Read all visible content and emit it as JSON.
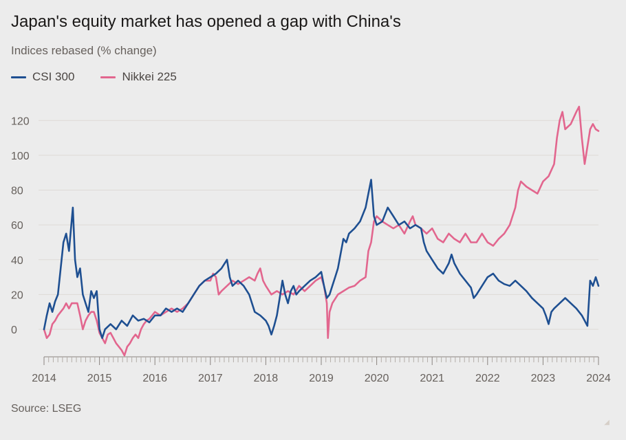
{
  "header": {
    "title": "Japan's equity market has opened a gap with China's",
    "subtitle": "Indices rebased (% change)"
  },
  "footer": {
    "source": "Source: LSEG"
  },
  "colors": {
    "csi": "#1e4f91",
    "nikkei": "#e2668e",
    "grid": "#dedad6",
    "axis": "#8a8480"
  },
  "chart_data": {
    "type": "line",
    "title": "Japan's equity market has opened a gap with China's",
    "subtitle": "Indices rebased (% change)",
    "xlabel": "",
    "ylabel": "",
    "xlim": [
      2014,
      2024
    ],
    "ylim": [
      -15,
      130
    ],
    "y_ticks": [
      0,
      20,
      40,
      60,
      80,
      100,
      120
    ],
    "x_ticks": [
      2014,
      2015,
      2016,
      2017,
      2018,
      2019,
      2020,
      2021,
      2022,
      2023,
      2024
    ],
    "x_tick_labels": [
      "2014",
      "2015",
      "2016",
      "2017",
      "2018",
      "2019",
      "2020",
      "2021",
      "2022",
      "2023",
      "2024"
    ],
    "grid": true,
    "legend": "top-left",
    "series": [
      {
        "name": "CSI 300",
        "color": "#1e4f91",
        "points": [
          [
            2014.0,
            0
          ],
          [
            2014.05,
            8
          ],
          [
            2014.1,
            15
          ],
          [
            2014.15,
            10
          ],
          [
            2014.2,
            16
          ],
          [
            2014.25,
            20
          ],
          [
            2014.3,
            35
          ],
          [
            2014.35,
            50
          ],
          [
            2014.4,
            55
          ],
          [
            2014.45,
            45
          ],
          [
            2014.52,
            70
          ],
          [
            2014.56,
            40
          ],
          [
            2014.6,
            30
          ],
          [
            2014.65,
            35
          ],
          [
            2014.7,
            20
          ],
          [
            2014.75,
            15
          ],
          [
            2014.8,
            10
          ],
          [
            2014.85,
            22
          ],
          [
            2014.9,
            18
          ],
          [
            2014.95,
            22
          ],
          [
            2015.0,
            0
          ],
          [
            2015.05,
            -5
          ],
          [
            2015.1,
            0
          ],
          [
            2015.2,
            3
          ],
          [
            2015.3,
            0
          ],
          [
            2015.4,
            5
          ],
          [
            2015.5,
            2
          ],
          [
            2015.6,
            8
          ],
          [
            2015.7,
            5
          ],
          [
            2015.8,
            6
          ],
          [
            2015.9,
            4
          ],
          [
            2016.0,
            8
          ],
          [
            2016.1,
            8
          ],
          [
            2016.2,
            12
          ],
          [
            2016.3,
            10
          ],
          [
            2016.4,
            12
          ],
          [
            2016.5,
            10
          ],
          [
            2016.6,
            15
          ],
          [
            2016.7,
            20
          ],
          [
            2016.8,
            25
          ],
          [
            2016.9,
            28
          ],
          [
            2017.0,
            30
          ],
          [
            2017.1,
            32
          ],
          [
            2017.2,
            35
          ],
          [
            2017.3,
            40
          ],
          [
            2017.35,
            30
          ],
          [
            2017.4,
            25
          ],
          [
            2017.5,
            28
          ],
          [
            2017.6,
            25
          ],
          [
            2017.7,
            20
          ],
          [
            2017.8,
            10
          ],
          [
            2017.9,
            8
          ],
          [
            2018.0,
            5
          ],
          [
            2018.05,
            2
          ],
          [
            2018.1,
            -3
          ],
          [
            2018.15,
            2
          ],
          [
            2018.2,
            8
          ],
          [
            2018.25,
            18
          ],
          [
            2018.3,
            28
          ],
          [
            2018.35,
            20
          ],
          [
            2018.4,
            15
          ],
          [
            2018.45,
            22
          ],
          [
            2018.5,
            25
          ],
          [
            2018.55,
            20
          ],
          [
            2018.6,
            22
          ],
          [
            2018.7,
            25
          ],
          [
            2018.8,
            28
          ],
          [
            2018.9,
            30
          ],
          [
            2019.0,
            33
          ],
          [
            2019.05,
            25
          ],
          [
            2019.1,
            18
          ],
          [
            2019.15,
            20
          ],
          [
            2019.2,
            25
          ],
          [
            2019.25,
            30
          ],
          [
            2019.3,
            35
          ],
          [
            2019.4,
            52
          ],
          [
            2019.45,
            50
          ],
          [
            2019.5,
            55
          ],
          [
            2019.6,
            58
          ],
          [
            2019.7,
            62
          ],
          [
            2019.8,
            70
          ],
          [
            2019.85,
            78
          ],
          [
            2019.9,
            86
          ],
          [
            2019.95,
            65
          ],
          [
            2020.0,
            60
          ],
          [
            2020.1,
            62
          ],
          [
            2020.2,
            70
          ],
          [
            2020.3,
            65
          ],
          [
            2020.4,
            60
          ],
          [
            2020.5,
            62
          ],
          [
            2020.6,
            58
          ],
          [
            2020.7,
            60
          ],
          [
            2020.8,
            58
          ],
          [
            2020.85,
            50
          ],
          [
            2020.9,
            45
          ],
          [
            2021.0,
            40
          ],
          [
            2021.1,
            35
          ],
          [
            2021.2,
            32
          ],
          [
            2021.3,
            38
          ],
          [
            2021.35,
            43
          ],
          [
            2021.4,
            38
          ],
          [
            2021.5,
            32
          ],
          [
            2021.6,
            28
          ],
          [
            2021.7,
            24
          ],
          [
            2021.75,
            18
          ],
          [
            2021.8,
            20
          ],
          [
            2021.9,
            25
          ],
          [
            2022.0,
            30
          ],
          [
            2022.1,
            32
          ],
          [
            2022.2,
            28
          ],
          [
            2022.3,
            26
          ],
          [
            2022.4,
            25
          ],
          [
            2022.5,
            28
          ],
          [
            2022.6,
            25
          ],
          [
            2022.7,
            22
          ],
          [
            2022.8,
            18
          ],
          [
            2022.9,
            15
          ],
          [
            2023.0,
            12
          ],
          [
            2023.05,
            8
          ],
          [
            2023.1,
            3
          ],
          [
            2023.15,
            10
          ],
          [
            2023.2,
            12
          ],
          [
            2023.3,
            15
          ],
          [
            2023.4,
            18
          ],
          [
            2023.5,
            15
          ],
          [
            2023.6,
            12
          ],
          [
            2023.7,
            8
          ],
          [
            2023.75,
            5
          ],
          [
            2023.8,
            2
          ],
          [
            2023.85,
            28
          ],
          [
            2023.9,
            25
          ],
          [
            2023.95,
            30
          ],
          [
            2024.0,
            25
          ]
        ]
      },
      {
        "name": "Nikkei 225",
        "color": "#e2668e",
        "points": [
          [
            2014.0,
            0
          ],
          [
            2014.05,
            -5
          ],
          [
            2014.1,
            -3
          ],
          [
            2014.15,
            3
          ],
          [
            2014.2,
            5
          ],
          [
            2014.25,
            8
          ],
          [
            2014.3,
            10
          ],
          [
            2014.35,
            12
          ],
          [
            2014.4,
            15
          ],
          [
            2014.45,
            12
          ],
          [
            2014.5,
            15
          ],
          [
            2014.55,
            15
          ],
          [
            2014.6,
            15
          ],
          [
            2014.65,
            8
          ],
          [
            2014.7,
            0
          ],
          [
            2014.75,
            5
          ],
          [
            2014.8,
            8
          ],
          [
            2014.85,
            10
          ],
          [
            2014.9,
            10
          ],
          [
            2014.95,
            5
          ],
          [
            2015.0,
            -2
          ],
          [
            2015.05,
            -5
          ],
          [
            2015.1,
            -8
          ],
          [
            2015.15,
            -3
          ],
          [
            2015.2,
            -2
          ],
          [
            2015.25,
            -5
          ],
          [
            2015.3,
            -8
          ],
          [
            2015.35,
            -10
          ],
          [
            2015.4,
            -12
          ],
          [
            2015.45,
            -15
          ],
          [
            2015.5,
            -10
          ],
          [
            2015.55,
            -8
          ],
          [
            2015.6,
            -5
          ],
          [
            2015.65,
            -3
          ],
          [
            2015.7,
            -5
          ],
          [
            2015.75,
            0
          ],
          [
            2015.8,
            3
          ],
          [
            2015.85,
            5
          ],
          [
            2015.9,
            6
          ],
          [
            2015.95,
            8
          ],
          [
            2016.0,
            10
          ],
          [
            2016.1,
            8
          ],
          [
            2016.2,
            10
          ],
          [
            2016.3,
            12
          ],
          [
            2016.4,
            10
          ],
          [
            2016.5,
            12
          ],
          [
            2016.6,
            15
          ],
          [
            2016.7,
            20
          ],
          [
            2016.8,
            25
          ],
          [
            2016.9,
            28
          ],
          [
            2017.0,
            28
          ],
          [
            2017.05,
            32
          ],
          [
            2017.1,
            30
          ],
          [
            2017.15,
            20
          ],
          [
            2017.2,
            22
          ],
          [
            2017.3,
            25
          ],
          [
            2017.4,
            28
          ],
          [
            2017.5,
            26
          ],
          [
            2017.6,
            28
          ],
          [
            2017.7,
            30
          ],
          [
            2017.8,
            28
          ],
          [
            2017.85,
            32
          ],
          [
            2017.9,
            35
          ],
          [
            2017.95,
            28
          ],
          [
            2018.0,
            25
          ],
          [
            2018.1,
            20
          ],
          [
            2018.2,
            22
          ],
          [
            2018.3,
            20
          ],
          [
            2018.4,
            22
          ],
          [
            2018.5,
            20
          ],
          [
            2018.6,
            25
          ],
          [
            2018.7,
            22
          ],
          [
            2018.8,
            25
          ],
          [
            2018.9,
            28
          ],
          [
            2019.0,
            30
          ],
          [
            2019.05,
            25
          ],
          [
            2019.1,
            15
          ],
          [
            2019.12,
            -5
          ],
          [
            2019.15,
            10
          ],
          [
            2019.2,
            15
          ],
          [
            2019.3,
            20
          ],
          [
            2019.4,
            22
          ],
          [
            2019.5,
            24
          ],
          [
            2019.6,
            25
          ],
          [
            2019.7,
            28
          ],
          [
            2019.8,
            30
          ],
          [
            2019.85,
            45
          ],
          [
            2019.9,
            50
          ],
          [
            2019.95,
            62
          ],
          [
            2020.0,
            65
          ],
          [
            2020.1,
            62
          ],
          [
            2020.2,
            60
          ],
          [
            2020.3,
            58
          ],
          [
            2020.4,
            60
          ],
          [
            2020.5,
            55
          ],
          [
            2020.6,
            62
          ],
          [
            2020.65,
            65
          ],
          [
            2020.7,
            60
          ],
          [
            2020.8,
            58
          ],
          [
            2020.9,
            55
          ],
          [
            2021.0,
            58
          ],
          [
            2021.1,
            52
          ],
          [
            2021.2,
            50
          ],
          [
            2021.3,
            55
          ],
          [
            2021.4,
            52
          ],
          [
            2021.5,
            50
          ],
          [
            2021.6,
            55
          ],
          [
            2021.7,
            50
          ],
          [
            2021.8,
            50
          ],
          [
            2021.9,
            55
          ],
          [
            2022.0,
            50
          ],
          [
            2022.1,
            48
          ],
          [
            2022.2,
            52
          ],
          [
            2022.3,
            55
          ],
          [
            2022.4,
            60
          ],
          [
            2022.5,
            70
          ],
          [
            2022.55,
            80
          ],
          [
            2022.6,
            85
          ],
          [
            2022.7,
            82
          ],
          [
            2022.8,
            80
          ],
          [
            2022.9,
            78
          ],
          [
            2023.0,
            85
          ],
          [
            2023.1,
            88
          ],
          [
            2023.2,
            95
          ],
          [
            2023.25,
            110
          ],
          [
            2023.3,
            120
          ],
          [
            2023.35,
            125
          ],
          [
            2023.4,
            115
          ],
          [
            2023.5,
            118
          ],
          [
            2023.6,
            125
          ],
          [
            2023.65,
            128
          ],
          [
            2023.7,
            110
          ],
          [
            2023.75,
            95
          ],
          [
            2023.8,
            105
          ],
          [
            2023.85,
            115
          ],
          [
            2023.9,
            118
          ],
          [
            2023.95,
            115
          ],
          [
            2024.0,
            114
          ]
        ]
      }
    ]
  }
}
